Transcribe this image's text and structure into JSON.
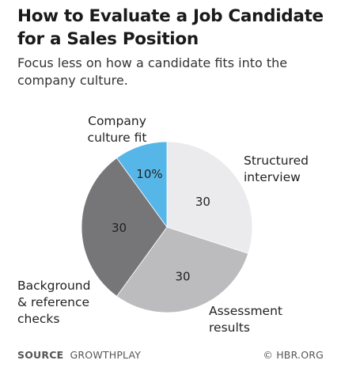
{
  "title_lines": [
    "How to Evaluate a Job Candidate",
    "for a Sales Position"
  ],
  "subtitle_lines": [
    "Focus less on how a candidate fits into the",
    "company culture."
  ],
  "chart_data": {
    "type": "pie",
    "title": "How to Evaluate a Job Candidate for a Sales Position",
    "subtitle": "Focus less on how a candidate fits into the company culture.",
    "start_angle_deg": 0,
    "direction": "clockwise",
    "slices": [
      {
        "label_lines": [
          "Structured",
          "interview"
        ],
        "value": 30,
        "value_label": "30",
        "color": "#ebebed"
      },
      {
        "label_lines": [
          "Assessment",
          "results"
        ],
        "value": 30,
        "value_label": "30",
        "color": "#bcbcbe"
      },
      {
        "label_lines": [
          "Background",
          "& reference",
          "checks"
        ],
        "value": 30,
        "value_label": "30",
        "color": "#767678"
      },
      {
        "label_lines": [
          "Company",
          "culture fit"
        ],
        "value": 10,
        "value_label": "10%",
        "color": "#56b6e8"
      }
    ]
  },
  "footer": {
    "source_label": "SOURCE",
    "source_name": "GROWTHPLAY",
    "credit": "© HBR.ORG"
  }
}
